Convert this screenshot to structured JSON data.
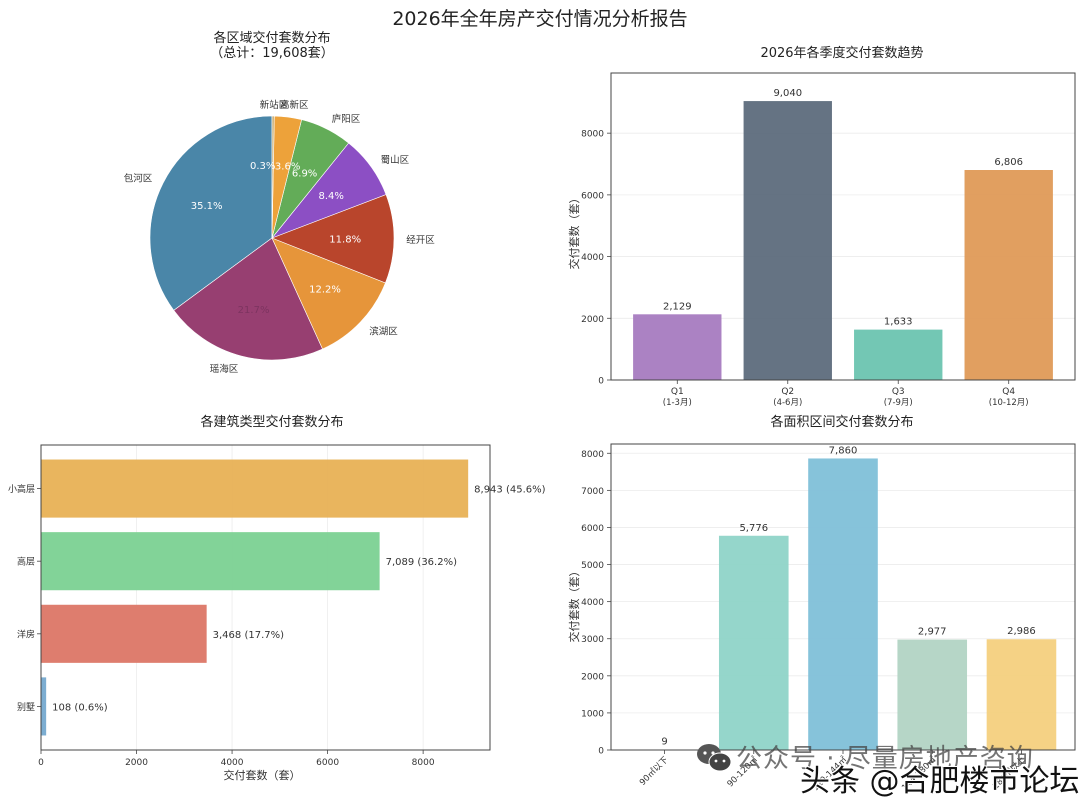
{
  "page": {
    "title": "2026年全年房产交付情况分析报告"
  },
  "watermark": {
    "line1": "公众号 · 尽量房地产咨询",
    "line2": "头条 @合肥楼市论坛",
    "icon": "wechat-icon"
  },
  "chart_data": [
    {
      "type": "pie",
      "title": "各区域交付套数分布",
      "subtitle": "（总计：19,608套）",
      "total": 19608,
      "start_angle": 90,
      "direction": "counterclockwise",
      "slices": [
        {
          "label": "包河区",
          "pct": 35.1,
          "pct_label": "35.1%",
          "color": "#4a86a8"
        },
        {
          "label": "瑶海区",
          "pct": 21.7,
          "pct_label": "21.7%",
          "color": "#973f71"
        },
        {
          "label": "滨湖区",
          "pct": 12.2,
          "pct_label": "12.2%",
          "color": "#e6953a"
        },
        {
          "label": "经开区",
          "pct": 11.8,
          "pct_label": "11.8%",
          "color": "#b9452c"
        },
        {
          "label": "蜀山区",
          "pct": 8.4,
          "pct_label": "8.4%",
          "color": "#8c4fc4"
        },
        {
          "label": "庐阳区",
          "pct": 6.9,
          "pct_label": "6.9%",
          "color": "#63ac58"
        },
        {
          "label": "高新区",
          "pct": 3.6,
          "pct_label": "3.6%",
          "color": "#eda23a"
        },
        {
          "label": "新站区",
          "pct": 0.3,
          "pct_label": "0.3%",
          "color": "#c9b07a"
        }
      ]
    },
    {
      "type": "bar",
      "title": "2026年各季度交付套数趋势",
      "xlabel": "",
      "ylabel": "交付套数（套）",
      "categories": [
        "Q1",
        "Q2",
        "Q3",
        "Q4"
      ],
      "category_sublabels": [
        "(1-3月)",
        "(4-6月)",
        "(7-9月)",
        "(10-12月)"
      ],
      "values": [
        2129,
        9040,
        1633,
        6806
      ],
      "value_labels": [
        "2,129",
        "9,040",
        "1,633",
        "6,806"
      ],
      "colors": [
        "#a67bc0",
        "#5d6b7c",
        "#6cc4b0",
        "#df9a57"
      ],
      "yticks": [
        0,
        2000,
        4000,
        6000,
        8000
      ],
      "ylim": [
        0,
        9950
      ],
      "grid": true
    },
    {
      "type": "bar",
      "orientation": "horizontal",
      "title": "各建筑类型交付套数分布",
      "xlabel": "交付套数（套）",
      "ylabel": "",
      "categories": [
        "小高层",
        "高层",
        "洋房",
        "别墅"
      ],
      "values": [
        8943,
        7089,
        3468,
        108
      ],
      "value_labels": [
        "8,943 (45.6%)",
        "7,089 (36.2%)",
        "3,468 (17.7%)",
        "108 (0.6%)"
      ],
      "colors": [
        "#e8b155",
        "#7bd192",
        "#dc7666",
        "#75a9cf"
      ],
      "xticks": [
        0,
        2000,
        4000,
        6000,
        8000
      ],
      "xlim": [
        0,
        9400
      ],
      "grid": true
    },
    {
      "type": "bar",
      "title": "各面积区间交付套数分布",
      "xlabel": "",
      "ylabel": "交付套数（套）",
      "categories": [
        "90㎡以下",
        "90-120㎡",
        "120-144㎡",
        "144-180㎡",
        "180㎡以上"
      ],
      "values": [
        9,
        5776,
        7860,
        2977,
        2986
      ],
      "value_labels": [
        "9",
        "5,776",
        "7,860",
        "2,977",
        "2,986"
      ],
      "colors": [
        "#8fd4c8",
        "#8fd4c8",
        "#7fc0d8",
        "#b2d4c4",
        "#f4d07e"
      ],
      "yticks": [
        0,
        1000,
        2000,
        3000,
        4000,
        5000,
        6000,
        7000,
        8000
      ],
      "ylim": [
        0,
        8250
      ],
      "grid": true
    }
  ]
}
